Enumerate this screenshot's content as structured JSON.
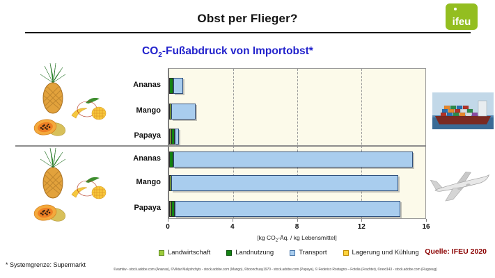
{
  "header": {
    "title": "Obst per Flieger?",
    "logo": "ifeu"
  },
  "chart": {
    "title": {
      "pre": "CO",
      "sub": "2",
      "post": "-Fußabdruck von Importobst*"
    },
    "axis": {
      "pre": "[kg CO",
      "sub": "2",
      "post": "-Äq. / kg Lebensmittel]"
    }
  },
  "chart_data": {
    "type": "bar",
    "orientation": "horizontal-stacked",
    "title": "CO2-Fußabdruck von Importobst*",
    "xlabel": "[kg CO2-Äq. / kg Lebensmittel]",
    "xlim": [
      0,
      16
    ],
    "xticks": [
      0,
      4,
      8,
      12,
      16
    ],
    "grid": "dashed-vertical",
    "categories": [
      "Ananas",
      "Mango",
      "Papaya"
    ],
    "groups": [
      {
        "name": "Schiffstransport",
        "icon": "container-ship",
        "series": [
          {
            "name": "Landwirtschaft",
            "values": [
              0,
              0.15,
              0.15
            ]
          },
          {
            "name": "Landnutzung",
            "values": [
              0.25,
              0,
              0.2
            ]
          },
          {
            "name": "Transport",
            "values": [
              0.6,
              1.5,
              0.25
            ]
          },
          {
            "name": "Lagerung und Kühlung",
            "values": [
              0,
              0,
              0
            ]
          }
        ],
        "totals": [
          0.85,
          1.65,
          0.6
        ]
      },
      {
        "name": "Flugtransport",
        "icon": "airplane",
        "series": [
          {
            "name": "Landwirtschaft",
            "values": [
              0,
              0.15,
              0.15
            ]
          },
          {
            "name": "Landnutzung",
            "values": [
              0.25,
              0,
              0.2
            ]
          },
          {
            "name": "Transport",
            "values": [
              14.85,
              14.05,
              13.95
            ]
          },
          {
            "name": "Lagerung und Kühlung",
            "values": [
              0,
              0,
              0
            ]
          }
        ],
        "totals": [
          15.1,
          14.2,
          14.3
        ]
      }
    ]
  },
  "legend": {
    "items": [
      {
        "label": "Landwirtschaft",
        "color": "#9ccb3b",
        "border": "#5e8a1e"
      },
      {
        "label": "Landnutzung",
        "color": "#128212",
        "border": "#0a4f0a"
      },
      {
        "label": "Transport",
        "color": "#a9cdee",
        "border": "#4472a8"
      },
      {
        "label": "Lagerung und Kühlung",
        "color": "#ffd23b",
        "border": "#c08a00"
      }
    ]
  },
  "footer": {
    "note": "* Systemgrenze: Supermarkt",
    "credits": "©vamtiw - stock.adobe.com (Ananas), ©Viktar Malyshchyts - stock.adobe.com (Mango), ©boonchuay1970 - stock.adobe.com (Papaya), © Federico Rostagno – Fotolia (Frachter), ©next143 - stock.adobe.com (Flugzeug)",
    "source": "Quelle: IFEU 2020"
  }
}
